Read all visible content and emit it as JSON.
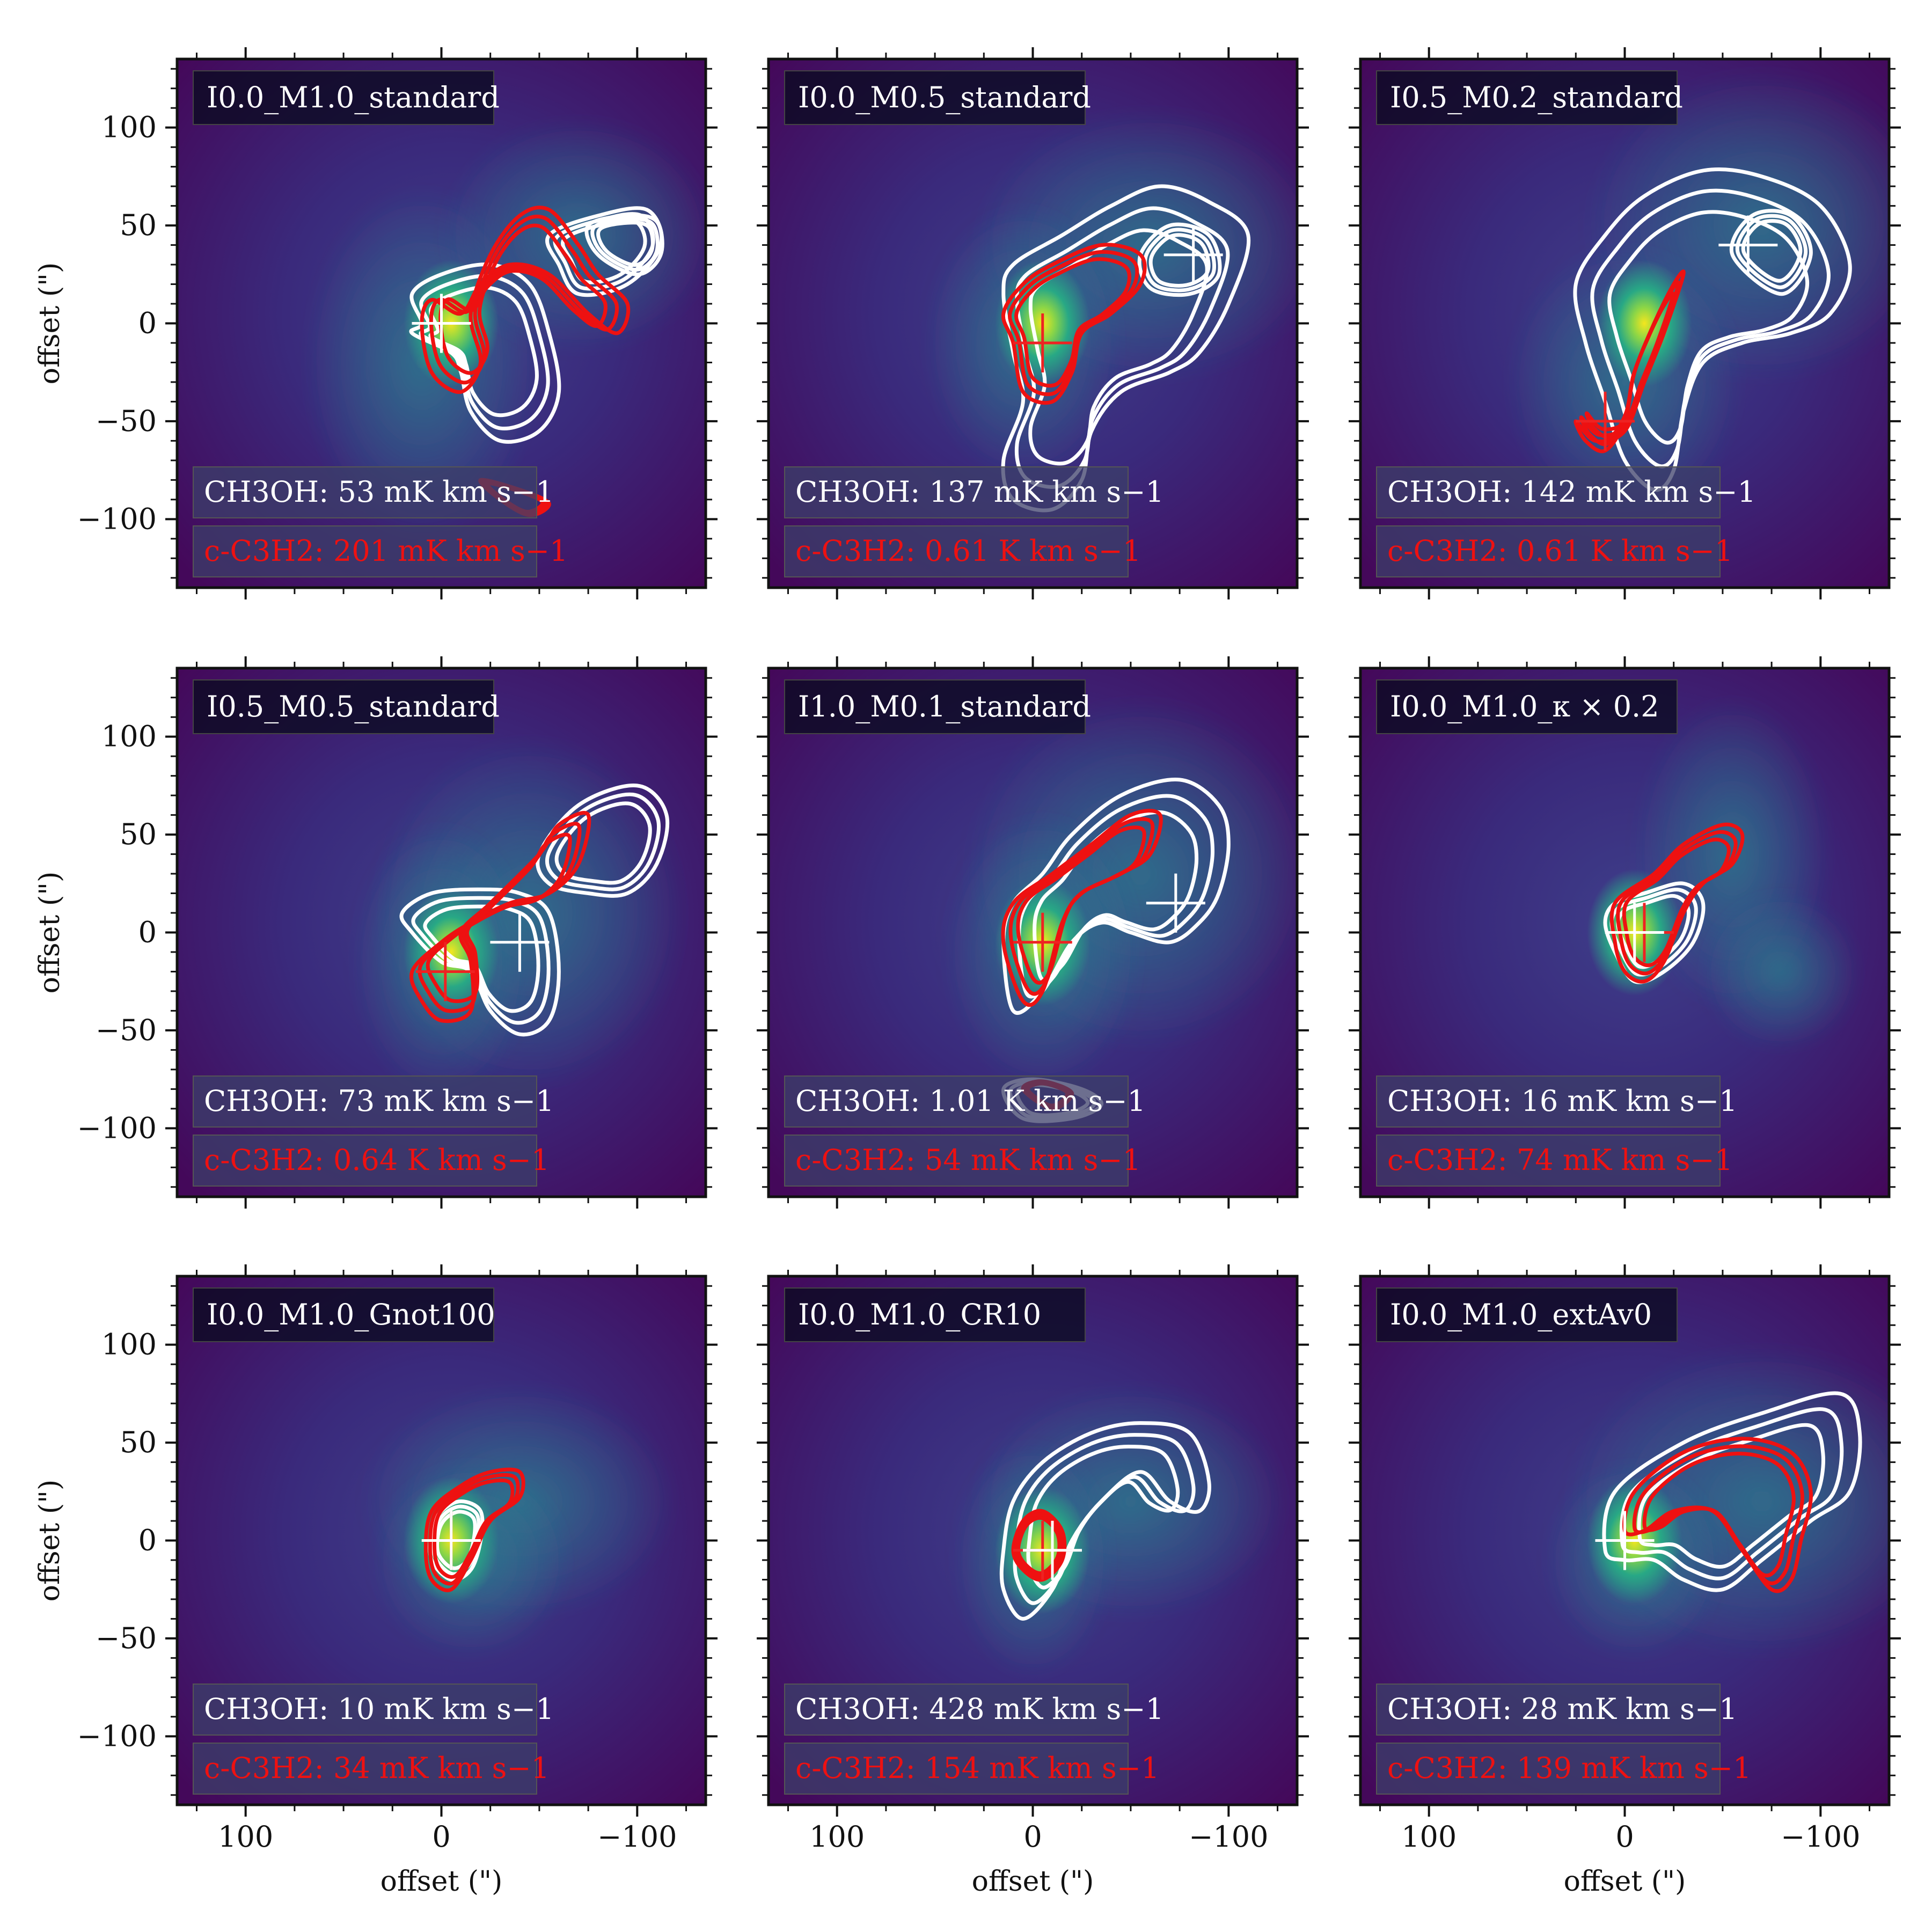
{
  "figure": {
    "xlabel": "offset (\")",
    "ylabel": "offset (\")"
  },
  "chart_data": [
    {
      "type": "heatmap",
      "title": "I0.0_M1.0_standard",
      "xlim": [
        135,
        -135
      ],
      "ylim": [
        -135,
        135
      ],
      "xticks": [
        100,
        0,
        -100
      ],
      "yticks": [
        100,
        50,
        0,
        -50,
        -100
      ],
      "ch3oh_label": "CH3OH: 53 mK km s−1",
      "c3h2_label": "c-C3H2: 201 mK km s−1",
      "ch3oh_peak": [
        0,
        0
      ],
      "c3h2_peak": [
        0,
        0
      ],
      "emission_peak": [
        -5,
        0
      ]
    },
    {
      "type": "heatmap",
      "title": "I0.0_M0.5_standard",
      "xlim": [
        135,
        -135
      ],
      "ylim": [
        -135,
        135
      ],
      "xticks": [
        100,
        0,
        -100
      ],
      "yticks": [
        100,
        50,
        0,
        -50,
        -100
      ],
      "ch3oh_label": "CH3OH: 137 mK km s−1",
      "c3h2_label": "c-C3H2: 0.61 K km s−1",
      "ch3oh_peak": [
        -82,
        35
      ],
      "c3h2_peak": [
        -5,
        -10
      ],
      "emission_peak": [
        -5,
        0
      ]
    },
    {
      "type": "heatmap",
      "title": "I0.5_M0.2_standard",
      "xlim": [
        135,
        -135
      ],
      "ylim": [
        -135,
        135
      ],
      "xticks": [
        100,
        0,
        -100
      ],
      "yticks": [
        100,
        50,
        0,
        -50,
        -100
      ],
      "ch3oh_label": "CH3OH: 142 mK km s−1",
      "c3h2_label": "c-C3H2: 0.61 K km s−1",
      "ch3oh_peak": [
        -63,
        40
      ],
      "c3h2_peak": [
        10,
        -50
      ],
      "emission_peak": [
        -10,
        0
      ]
    },
    {
      "type": "heatmap",
      "title": "I0.5_M0.5_standard",
      "xlim": [
        135,
        -135
      ],
      "ylim": [
        -135,
        135
      ],
      "xticks": [
        100,
        0,
        -100
      ],
      "yticks": [
        100,
        50,
        0,
        -50,
        -100
      ],
      "ch3oh_label": "CH3OH: 73 mK km s−1",
      "c3h2_label": "c-C3H2: 0.64 K km s−1",
      "ch3oh_peak": [
        -40,
        -5
      ],
      "c3h2_peak": [
        -2,
        -20
      ],
      "emission_peak": [
        -5,
        -10
      ]
    },
    {
      "type": "heatmap",
      "title": "I1.0_M0.1_standard",
      "xlim": [
        135,
        -135
      ],
      "ylim": [
        -135,
        135
      ],
      "xticks": [
        100,
        0,
        -100
      ],
      "yticks": [
        100,
        50,
        0,
        -50,
        -100
      ],
      "ch3oh_label": "CH3OH: 1.01 K km s−1",
      "c3h2_label": "c-C3H2: 54 mK km s−1",
      "ch3oh_peak": [
        -73,
        15
      ],
      "c3h2_peak": [
        -5,
        -5
      ],
      "emission_peak": [
        -5,
        -5
      ]
    },
    {
      "type": "heatmap",
      "title": "I0.0_M1.0_κ × 0.2",
      "xlim": [
        135,
        -135
      ],
      "ylim": [
        -135,
        135
      ],
      "xticks": [
        100,
        0,
        -100
      ],
      "yticks": [
        100,
        50,
        0,
        -50,
        -100
      ],
      "ch3oh_label": "CH3OH: 16 mK km s−1",
      "c3h2_label": "c-C3H2: 74 mK km s−1",
      "ch3oh_peak": [
        -5,
        0
      ],
      "c3h2_peak": [
        -10,
        0
      ],
      "emission_peak": [
        -5,
        0
      ]
    },
    {
      "type": "heatmap",
      "title": "I0.0_M1.0_Gnot100",
      "xlim": [
        135,
        -135
      ],
      "ylim": [
        -135,
        135
      ],
      "xticks": [
        100,
        0,
        -100
      ],
      "yticks": [
        100,
        50,
        0,
        -50,
        -100
      ],
      "ch3oh_label": "CH3OH: 10 mK km s−1",
      "c3h2_label": "c-C3H2: 34 mK km s−1",
      "ch3oh_peak": [
        -5,
        0
      ],
      "c3h2_peak": [
        -5,
        0
      ],
      "emission_peak": [
        -5,
        0
      ]
    },
    {
      "type": "heatmap",
      "title": "I0.0_M1.0_CR10",
      "xlim": [
        135,
        -135
      ],
      "ylim": [
        -135,
        135
      ],
      "xticks": [
        100,
        0,
        -100
      ],
      "yticks": [
        100,
        50,
        0,
        -50,
        -100
      ],
      "ch3oh_label": "CH3OH: 428 mK km s−1",
      "c3h2_label": "c-C3H2: 154 mK km s−1",
      "ch3oh_peak": [
        -10,
        -5
      ],
      "c3h2_peak": [
        -5,
        -5
      ],
      "emission_peak": [
        -5,
        -5
      ]
    },
    {
      "type": "heatmap",
      "title": "I0.0_M1.0_extAv0",
      "xlim": [
        135,
        -135
      ],
      "ylim": [
        -135,
        135
      ],
      "xticks": [
        100,
        0,
        -100
      ],
      "yticks": [
        100,
        50,
        0,
        -50,
        -100
      ],
      "ch3oh_label": "CH3OH: 28 mK km s−1",
      "c3h2_label": "c-C3H2: 139 mK km s−1",
      "ch3oh_peak": [
        0,
        0
      ],
      "c3h2_peak": [
        0,
        0
      ],
      "emission_peak": [
        -5,
        0
      ]
    }
  ]
}
